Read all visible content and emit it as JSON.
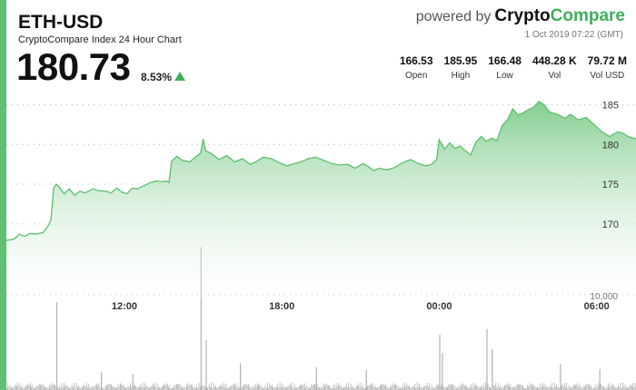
{
  "header": {
    "symbol": "ETH-USD",
    "subtitle": "CryptoCompare Index 24 Hour Chart",
    "price": "180.73",
    "change_pct": "8.53%",
    "change_direction": "up",
    "powered_by": "powered by",
    "brand_part1": "Crypto",
    "brand_part2": "Compare",
    "timestamp": "1 Oct 2019 07:22 (GMT)"
  },
  "stats": [
    {
      "value": "166.53",
      "label": "Open"
    },
    {
      "value": "185.95",
      "label": "High"
    },
    {
      "value": "166.48",
      "label": "Low"
    },
    {
      "value": "448.28 K",
      "label": "Vol"
    },
    {
      "value": "79.72 M",
      "label": "Vol USD"
    }
  ],
  "colors": {
    "accent": "#5fbf72",
    "line": "#5cbf6c",
    "area_top": "#84cf90",
    "up_arrow": "#3fae5a",
    "volume": "#b0b0b0"
  },
  "chart_data": {
    "type": "area",
    "ylim": [
      160.5,
      187
    ],
    "y_ticks": [
      170,
      175,
      180,
      185
    ],
    "x_ticks": [
      {
        "label": "12:00",
        "x": 9
      },
      {
        "label": "18:00",
        "x": 15
      },
      {
        "label": "00:00",
        "x": 21
      },
      {
        "label": "06:00",
        "x": 27
      }
    ],
    "x_range": [
      4.5,
      28.5
    ],
    "volume_tick_label": "10,000",
    "series": [
      {
        "values": [
          [
            4.5,
            167.9
          ],
          [
            4.8,
            168.1
          ],
          [
            5.0,
            168.7
          ],
          [
            5.2,
            168.4
          ],
          [
            5.4,
            168.8
          ],
          [
            5.6,
            168.7
          ],
          [
            5.9,
            168.9
          ],
          [
            6.1,
            169.8
          ],
          [
            6.2,
            170.5
          ],
          [
            6.3,
            174.5
          ],
          [
            6.4,
            175.0
          ],
          [
            6.5,
            174.7
          ],
          [
            6.7,
            173.8
          ],
          [
            6.9,
            174.4
          ],
          [
            7.1,
            173.6
          ],
          [
            7.3,
            174.1
          ],
          [
            7.5,
            173.9
          ],
          [
            7.8,
            174.4
          ],
          [
            8.0,
            174.2
          ],
          [
            8.3,
            174.1
          ],
          [
            8.5,
            173.9
          ],
          [
            8.7,
            174.5
          ],
          [
            8.9,
            174.0
          ],
          [
            9.1,
            173.8
          ],
          [
            9.3,
            174.5
          ],
          [
            9.5,
            174.4
          ],
          [
            9.8,
            174.9
          ],
          [
            10.0,
            175.2
          ],
          [
            10.2,
            175.4
          ],
          [
            10.4,
            175.3
          ],
          [
            10.6,
            175.4
          ],
          [
            10.7,
            175.2
          ],
          [
            10.8,
            177.9
          ],
          [
            11.0,
            178.5
          ],
          [
            11.2,
            178.0
          ],
          [
            11.5,
            177.8
          ],
          [
            11.7,
            178.4
          ],
          [
            11.9,
            178.9
          ],
          [
            12.0,
            180.7
          ],
          [
            12.1,
            179.2
          ],
          [
            12.3,
            178.9
          ],
          [
            12.6,
            178.1
          ],
          [
            12.9,
            178.6
          ],
          [
            13.2,
            177.8
          ],
          [
            13.5,
            178.2
          ],
          [
            13.8,
            177.5
          ],
          [
            14.0,
            177.8
          ],
          [
            14.3,
            178.4
          ],
          [
            14.6,
            178.2
          ],
          [
            14.9,
            177.7
          ],
          [
            15.2,
            177.3
          ],
          [
            15.5,
            177.6
          ],
          [
            15.8,
            177.9
          ],
          [
            16.0,
            178.2
          ],
          [
            16.3,
            178.4
          ],
          [
            16.6,
            178.0
          ],
          [
            16.9,
            177.6
          ],
          [
            17.2,
            177.4
          ],
          [
            17.5,
            177.5
          ],
          [
            17.8,
            177.0
          ],
          [
            18.1,
            177.6
          ],
          [
            18.3,
            177.2
          ],
          [
            18.5,
            176.7
          ],
          [
            18.7,
            177.0
          ],
          [
            19.0,
            176.8
          ],
          [
            19.3,
            177.1
          ],
          [
            19.6,
            177.7
          ],
          [
            19.9,
            178.1
          ],
          [
            20.2,
            177.6
          ],
          [
            20.5,
            177.3
          ],
          [
            20.7,
            177.5
          ],
          [
            20.9,
            178.1
          ],
          [
            21.0,
            180.6
          ],
          [
            21.2,
            179.4
          ],
          [
            21.4,
            180.2
          ],
          [
            21.6,
            179.5
          ],
          [
            21.8,
            179.8
          ],
          [
            22.0,
            179.2
          ],
          [
            22.2,
            178.7
          ],
          [
            22.4,
            180.3
          ],
          [
            22.6,
            181.0
          ],
          [
            22.8,
            180.4
          ],
          [
            23.0,
            180.8
          ],
          [
            23.2,
            180.5
          ],
          [
            23.4,
            182.4
          ],
          [
            23.6,
            183.1
          ],
          [
            23.8,
            184.5
          ],
          [
            24.0,
            183.7
          ],
          [
            24.2,
            184.0
          ],
          [
            24.4,
            184.4
          ],
          [
            24.6,
            184.7
          ],
          [
            24.8,
            185.4
          ],
          [
            25.0,
            185.0
          ],
          [
            25.2,
            184.1
          ],
          [
            25.5,
            183.8
          ],
          [
            25.8,
            183.3
          ],
          [
            26.0,
            183.8
          ],
          [
            26.3,
            183.1
          ],
          [
            26.6,
            183.4
          ],
          [
            26.9,
            182.5
          ],
          [
            27.2,
            181.6
          ],
          [
            27.5,
            181.0
          ],
          [
            27.8,
            181.6
          ],
          [
            28.0,
            181.4
          ],
          [
            28.2,
            181.0
          ],
          [
            28.5,
            180.7
          ]
        ]
      }
    ],
    "volume": [
      [
        6.4,
        9200
      ],
      [
        11.9,
        15000
      ],
      [
        12.1,
        5200
      ],
      [
        21.0,
        5800
      ],
      [
        21.1,
        3900
      ],
      [
        22.8,
        6400
      ],
      [
        23.0,
        4300
      ],
      [
        13.4,
        2800
      ],
      [
        16.3,
        2400
      ],
      [
        18.2,
        2100
      ],
      [
        25.6,
        2700
      ],
      [
        8.1,
        1900
      ],
      [
        9.3,
        1700
      ],
      [
        27.1,
        2200
      ]
    ]
  }
}
